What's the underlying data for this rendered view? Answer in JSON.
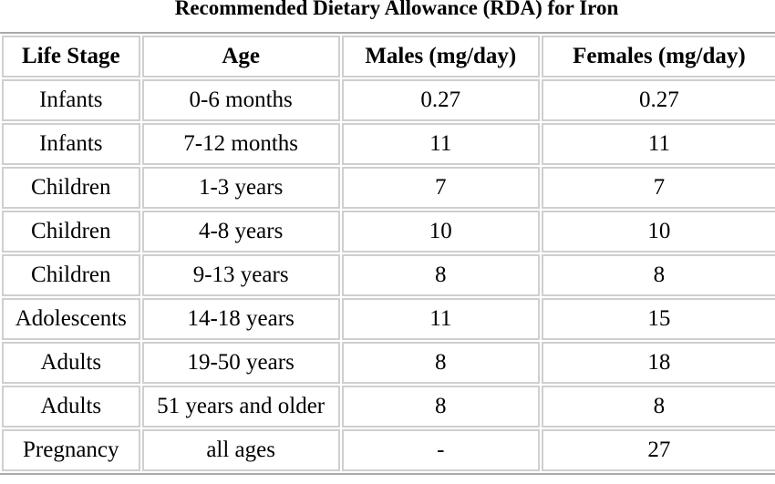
{
  "title": "Recommended Dietary Allowance (RDA) for Iron",
  "columns": [
    "Life Stage",
    "Age",
    "Males (mg/day)",
    "Females (mg/day)"
  ],
  "rows": [
    [
      "Infants",
      "0-6 months",
      "0.27",
      "0.27"
    ],
    [
      "Infants",
      "7-12 months",
      "11",
      "11"
    ],
    [
      "Children",
      "1-3 years",
      "7",
      "7"
    ],
    [
      "Children",
      "4-8 years",
      "10",
      "10"
    ],
    [
      "Children",
      "9-13 years",
      "8",
      "8"
    ],
    [
      "Adolescents",
      "14-18 years",
      "11",
      "15"
    ],
    [
      "Adults",
      "19-50 years",
      "8",
      "18"
    ],
    [
      "Adults",
      "51 years and older",
      "8",
      "8"
    ],
    [
      "Pregnancy",
      "all ages",
      "-",
      "27"
    ]
  ],
  "colors": {
    "outer_border": "#aaaaaa",
    "cell_border": "#cfcfcf",
    "text": "#000000",
    "background": "#ffffff"
  }
}
